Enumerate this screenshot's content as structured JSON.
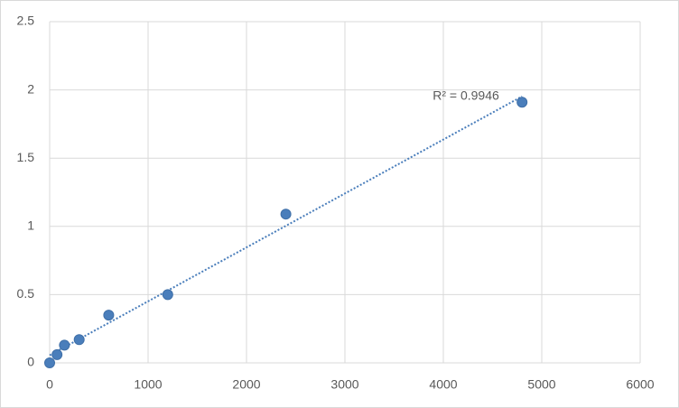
{
  "chart_data": {
    "type": "scatter",
    "x": [
      0,
      75,
      150,
      300,
      600,
      1200,
      2400,
      4800
    ],
    "series": [
      {
        "color": "#4a7ebb",
        "values": [
          0,
          0.06,
          0.13,
          0.17,
          0.35,
          0.5,
          1.09,
          1.91
        ]
      }
    ],
    "xlim": [
      0,
      6000
    ],
    "xticks": [
      0,
      1000,
      2000,
      3000,
      4000,
      5000,
      6000
    ],
    "ylim": [
      0,
      2.5
    ],
    "yticks": [
      0,
      0.5,
      1,
      1.5,
      2,
      2.5
    ],
    "grid": true,
    "trendline": "linear",
    "annotation": "R² = 0.9946"
  }
}
